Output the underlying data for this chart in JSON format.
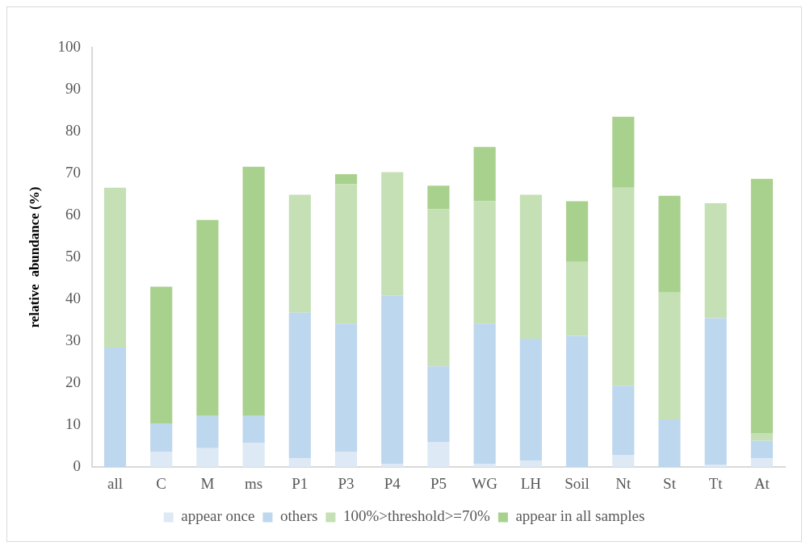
{
  "chart_data": {
    "type": "bar",
    "stacked": true,
    "ylabel": "relative  abundance (%)",
    "categories": [
      "all",
      "C",
      "M",
      "ms",
      "P1",
      "P3",
      "P4",
      "P5",
      "WG",
      "LH",
      "Soil",
      "Nt",
      "St",
      "Tt",
      "At"
    ],
    "series": [
      {
        "name": "appear once",
        "color": "#dde9f5",
        "values": [
          0,
          3.7,
          4.5,
          5.7,
          2.1,
          3.7,
          0.7,
          6.0,
          0.7,
          1.5,
          0,
          2.9,
          0,
          0.5,
          2.1
        ]
      },
      {
        "name": "others",
        "color": "#bdd7ee",
        "values": [
          28.5,
          6.7,
          7.7,
          6.5,
          34.7,
          30.5,
          40.2,
          18.0,
          33.5,
          29.1,
          31.3,
          16.5,
          11.4,
          35.0,
          4.2
        ]
      },
      {
        "name": "100%>threshold>=70%",
        "color": "#c5e0b4",
        "values": [
          38.1,
          0,
          0,
          0,
          28.1,
          33.2,
          29.4,
          37.5,
          29.2,
          34.3,
          17.6,
          47.2,
          30.2,
          27.4,
          1.8
        ]
      },
      {
        "name": "appear in all samples",
        "color": "#a9d18e",
        "values": [
          0,
          32.6,
          46.7,
          59.4,
          0,
          2.4,
          0,
          5.6,
          12.9,
          0,
          14.5,
          16.9,
          23.1,
          0,
          60.6
        ]
      }
    ],
    "ylim": [
      0,
      100
    ],
    "yticks": [
      0,
      10,
      20,
      30,
      40,
      50,
      60,
      70,
      80,
      90,
      100
    ],
    "grid": false,
    "legend": "bottom"
  }
}
